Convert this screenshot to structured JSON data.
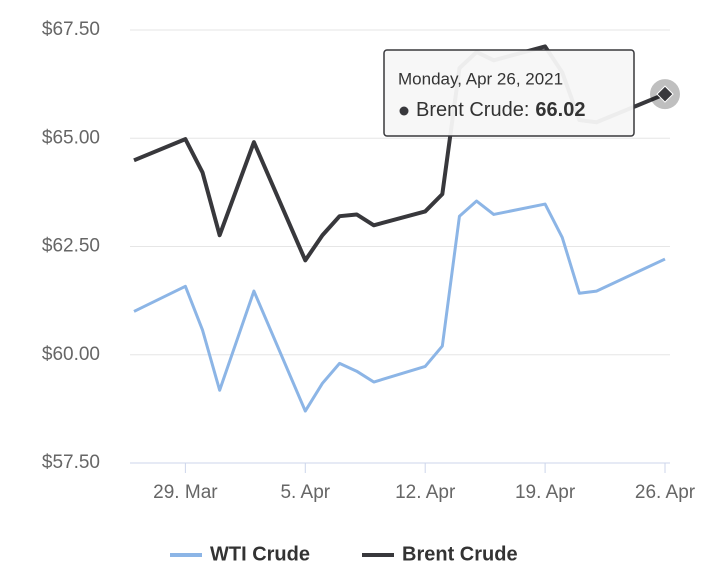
{
  "chart_data": {
    "type": "line",
    "x": [
      "2021-03-26",
      "2021-03-29",
      "2021-03-30",
      "2021-03-31",
      "2021-04-02",
      "2021-04-05",
      "2021-04-06",
      "2021-04-07",
      "2021-04-08",
      "2021-04-09",
      "2021-04-12",
      "2021-04-13",
      "2021-04-14",
      "2021-04-15",
      "2021-04-16",
      "2021-04-19",
      "2021-04-20",
      "2021-04-21",
      "2021-04-22",
      "2021-04-26"
    ],
    "series": [
      {
        "name": "WTI Crude",
        "color": "#8cb5e6",
        "values": [
          61.0,
          61.58,
          60.57,
          59.18,
          61.47,
          58.7,
          59.34,
          59.8,
          59.62,
          59.37,
          59.73,
          60.2,
          63.2,
          63.55,
          63.24,
          63.48,
          62.71,
          61.42,
          61.47,
          62.21
        ]
      },
      {
        "name": "Brent Crude",
        "color": "#38383c",
        "values": [
          64.49,
          64.98,
          64.21,
          62.76,
          64.91,
          62.18,
          62.76,
          63.2,
          63.24,
          62.99,
          63.31,
          63.71,
          66.62,
          66.99,
          66.8,
          67.12,
          66.52,
          65.42,
          65.37,
          66.02
        ]
      }
    ],
    "xlim": [
      "2021-03-26",
      "2021-04-26"
    ],
    "xticks": [
      {
        "value": "2021-03-29",
        "label": "29. Mar"
      },
      {
        "value": "2021-04-05",
        "label": "5. Apr"
      },
      {
        "value": "2021-04-12",
        "label": "12. Apr"
      },
      {
        "value": "2021-04-19",
        "label": "19. Apr"
      },
      {
        "value": "2021-04-26",
        "label": "26. Apr"
      }
    ],
    "ylim": [
      57.5,
      67.5
    ],
    "yticks": [
      {
        "value": 57.5,
        "label": "$57.50"
      },
      {
        "value": 60,
        "label": "$60.00"
      },
      {
        "value": 62.5,
        "label": "$62.50"
      },
      {
        "value": 65,
        "label": "$65.00"
      },
      {
        "value": 67.5,
        "label": "$67.50"
      }
    ],
    "grid": true,
    "legend": "bottom",
    "tooltip": {
      "header": "Monday, Apr 26, 2021",
      "label": "Brent Crude:"
    }
  }
}
